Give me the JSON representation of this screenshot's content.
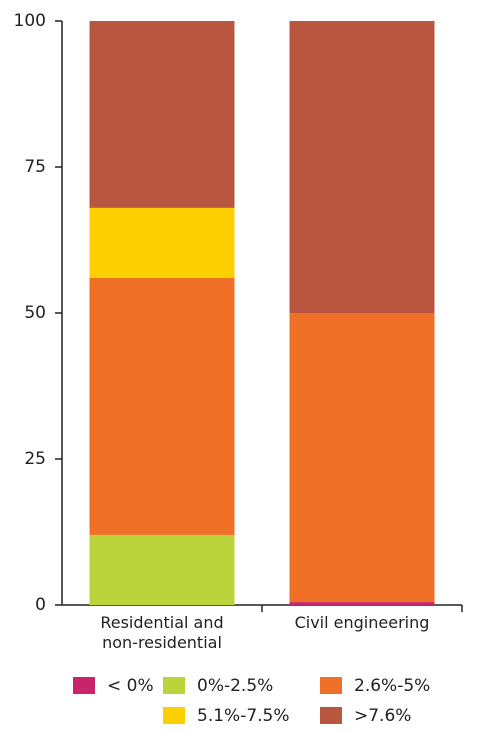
{
  "chart_data": {
    "type": "stacked_bar",
    "categories": [
      "Residential and non-residential",
      "Civil engineering"
    ],
    "series": [
      {
        "name": "< 0%",
        "color": "#c8246c",
        "values": [
          0,
          0.5
        ]
      },
      {
        "name": "0%-2.5%",
        "color": "#bcd43c",
        "values": [
          12,
          0
        ]
      },
      {
        "name": "2.6%-5%",
        "color": "#f07028",
        "values": [
          44,
          49.5
        ]
      },
      {
        "name": "5.1%-7.5%",
        "color": "#fcd000",
        "values": [
          12,
          0
        ]
      },
      {
        "name": ">7.6%",
        "color": "#b85640",
        "values": [
          32,
          50
        ]
      }
    ],
    "ylim": [
      0,
      100
    ],
    "yticks": [
      0,
      25,
      50,
      75,
      100
    ],
    "grid": false
  }
}
